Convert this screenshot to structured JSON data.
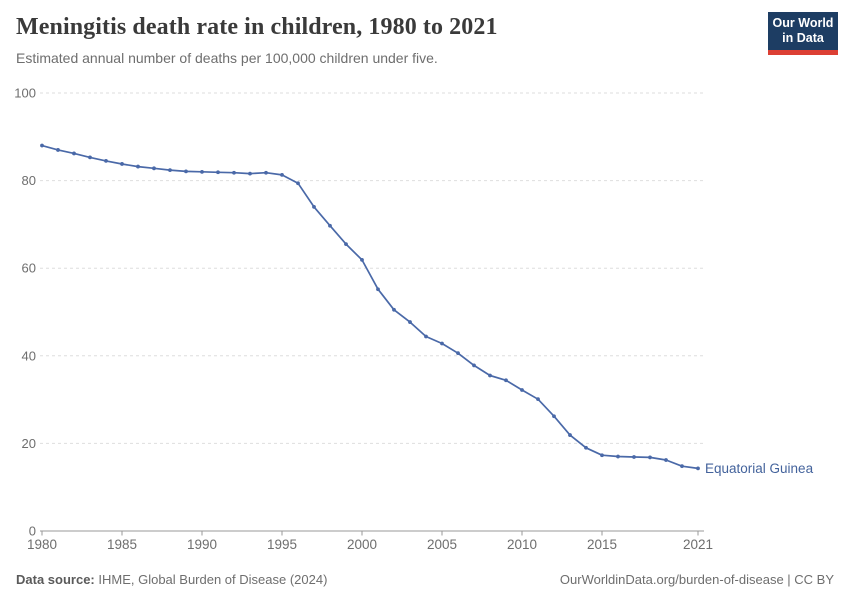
{
  "header": {
    "title": "Meningitis death rate in children, 1980 to 2021",
    "subtitle": "Estimated annual number of deaths per 100,000 children under five.",
    "logo": {
      "line1": "Our World",
      "line2": "in Data"
    }
  },
  "footer": {
    "datasource_label": "Data source:",
    "datasource_value": " IHME, Global Burden of Disease (2024)",
    "link": "OurWorldinData.org/burden-of-disease | CC BY"
  },
  "colors": {
    "series_line": "#4a69a8",
    "series_label": "#44639c",
    "gridline": "#dedede",
    "axis": "#999999",
    "tick_label": "#6e6e6e",
    "title": "#3a3a3a",
    "subtitle": "#6e6e6e",
    "logo_bg": "#1d3d63",
    "logo_red": "#dc3f34"
  },
  "chart_data": {
    "type": "line",
    "title": "Meningitis death rate in children, 1980 to 2021",
    "subtitle": "Estimated annual number of deaths per 100,000 children under five.",
    "xlabel": "",
    "ylabel": "",
    "xlim": [
      1980,
      2021
    ],
    "ylim": [
      0,
      100
    ],
    "grid": "horizontal-dashed",
    "legend_position": "end-of-line-label",
    "xticks": [
      1980,
      1985,
      1990,
      1995,
      2000,
      2005,
      2010,
      2015,
      2021
    ],
    "yticks": [
      0,
      20,
      40,
      60,
      80,
      100
    ],
    "x": [
      1980,
      1981,
      1982,
      1983,
      1984,
      1985,
      1986,
      1987,
      1988,
      1989,
      1990,
      1991,
      1992,
      1993,
      1994,
      1995,
      1996,
      1997,
      1998,
      1999,
      2000,
      2001,
      2002,
      2003,
      2004,
      2005,
      2006,
      2007,
      2008,
      2009,
      2010,
      2011,
      2012,
      2013,
      2014,
      2015,
      2016,
      2017,
      2018,
      2019,
      2020,
      2021
    ],
    "series": [
      {
        "name": "Equatorial Guinea",
        "color": "#4a69a8",
        "values": [
          88,
          87,
          86.2,
          85.3,
          84.5,
          83.8,
          83.2,
          82.8,
          82.4,
          82.1,
          82,
          81.9,
          81.8,
          81.6,
          81.8,
          81.3,
          79.4,
          74,
          69.7,
          65.5,
          61.9,
          55.2,
          50.5,
          47.7,
          44.4,
          42.8,
          40.6,
          37.8,
          35.5,
          34.4,
          32.2,
          30.1,
          26.2,
          21.9,
          19,
          17.3,
          17,
          16.9,
          16.8,
          16.2,
          14.8,
          14.3
        ]
      }
    ]
  }
}
